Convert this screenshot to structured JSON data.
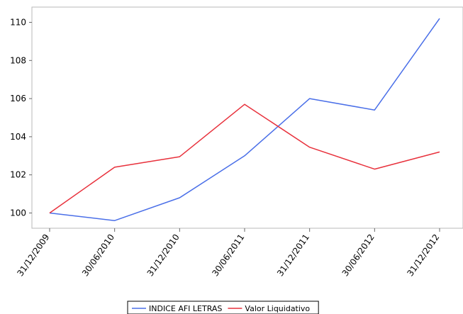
{
  "chart_data": {
    "type": "line",
    "categories": [
      "31/12/2009",
      "30/06/2010",
      "31/12/2010",
      "30/06/2011",
      "31/12/2011",
      "30/06/2012",
      "31/12/2012"
    ],
    "series": [
      {
        "name": "INDICE AFI LETRAS",
        "color": "#4a6fe8",
        "values": [
          100.0,
          99.6,
          100.8,
          103.0,
          106.0,
          105.4,
          110.2
        ]
      },
      {
        "name": "Valor Liquidativo",
        "color": "#e8313c",
        "values": [
          100.0,
          102.4,
          102.95,
          105.7,
          103.45,
          102.3,
          103.2
        ]
      }
    ],
    "yticks": [
      100,
      102,
      104,
      106,
      108,
      110
    ],
    "ylim": [
      99.2,
      110.8
    ],
    "grid": false,
    "legend_position": "bottom-center",
    "title": "",
    "xlabel": "",
    "ylabel": ""
  }
}
